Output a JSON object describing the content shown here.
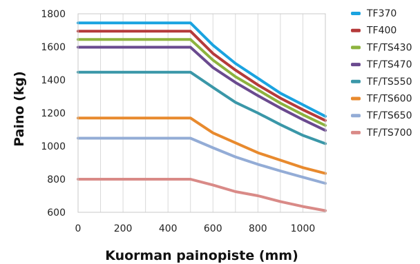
{
  "chart_data": {
    "type": "line",
    "xlabel": "Kuorman painopiste (mm)",
    "ylabel": "Paino (kg)",
    "xlim": [
      0,
      1100
    ],
    "ylim": [
      600,
      1800
    ],
    "x_ticks": [
      "0",
      "200",
      "400",
      "600",
      "800",
      "1000"
    ],
    "y_ticks": [
      "600",
      "800",
      "1000",
      "1200",
      "1400",
      "1600",
      "1800"
    ],
    "grid": "vertical",
    "legend_position": "right",
    "series": [
      {
        "name": "TF370",
        "color": "#1aa3e0",
        "x": [
          0,
          500,
          600,
          700,
          800,
          900,
          1000,
          1100
        ],
        "y": [
          1745,
          1745,
          1610,
          1500,
          1410,
          1320,
          1250,
          1180
        ]
      },
      {
        "name": "TF400",
        "color": "#b53a3a",
        "x": [
          0,
          500,
          600,
          700,
          800,
          900,
          1000,
          1100
        ],
        "y": [
          1695,
          1695,
          1560,
          1460,
          1370,
          1290,
          1220,
          1155
        ]
      },
      {
        "name": "TF/TS430",
        "color": "#8db33e",
        "x": [
          0,
          500,
          600,
          700,
          800,
          900,
          1000,
          1100
        ],
        "y": [
          1645,
          1645,
          1520,
          1420,
          1340,
          1260,
          1190,
          1125
        ]
      },
      {
        "name": "TF/TS470",
        "color": "#6a4a8f",
        "x": [
          0,
          500,
          600,
          700,
          800,
          900,
          1000,
          1100
        ],
        "y": [
          1598,
          1598,
          1475,
          1385,
          1305,
          1230,
          1160,
          1095
        ]
      },
      {
        "name": "TF/TS550",
        "color": "#3a97a8",
        "x": [
          0,
          500,
          600,
          700,
          800,
          900,
          1000,
          1100
        ],
        "y": [
          1447,
          1447,
          1355,
          1265,
          1200,
          1130,
          1065,
          1015
        ]
      },
      {
        "name": "TF/TS600",
        "color": "#e88a2e",
        "x": [
          0,
          500,
          600,
          700,
          800,
          900,
          1000,
          1100
        ],
        "y": [
          1170,
          1170,
          1080,
          1020,
          960,
          915,
          870,
          835
        ]
      },
      {
        "name": "TF/TS650",
        "color": "#93acd6",
        "x": [
          0,
          500,
          600,
          700,
          800,
          900,
          1000,
          1100
        ],
        "y": [
          1048,
          1048,
          990,
          935,
          890,
          850,
          812,
          775
        ]
      },
      {
        "name": "TF/TS700",
        "color": "#d98a87",
        "x": [
          0,
          500,
          600,
          700,
          800,
          900,
          1000,
          1100
        ],
        "y": [
          800,
          800,
          765,
          725,
          700,
          665,
          635,
          610
        ]
      }
    ]
  }
}
